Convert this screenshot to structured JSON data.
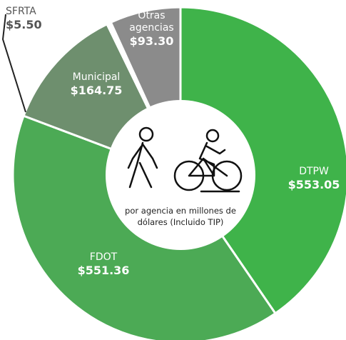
{
  "chart_data": {
    "type": "donut",
    "categories": [
      "DTPW",
      "FDOT",
      "Municipal",
      "SFRTA",
      "Otras agencias"
    ],
    "values": [
      553.05,
      551.36,
      164.75,
      5.5,
      93.3
    ],
    "value_labels": [
      "$553.05",
      "$551.36",
      "$164.75",
      "$5.50",
      "$93.30"
    ],
    "colors": [
      "#3fb34a",
      "#4caa55",
      "#6e8f6e",
      "#ffffff",
      "#8b8b8b"
    ],
    "center_text": "por agencia en millones de dólares (Incluido TIP)"
  }
}
